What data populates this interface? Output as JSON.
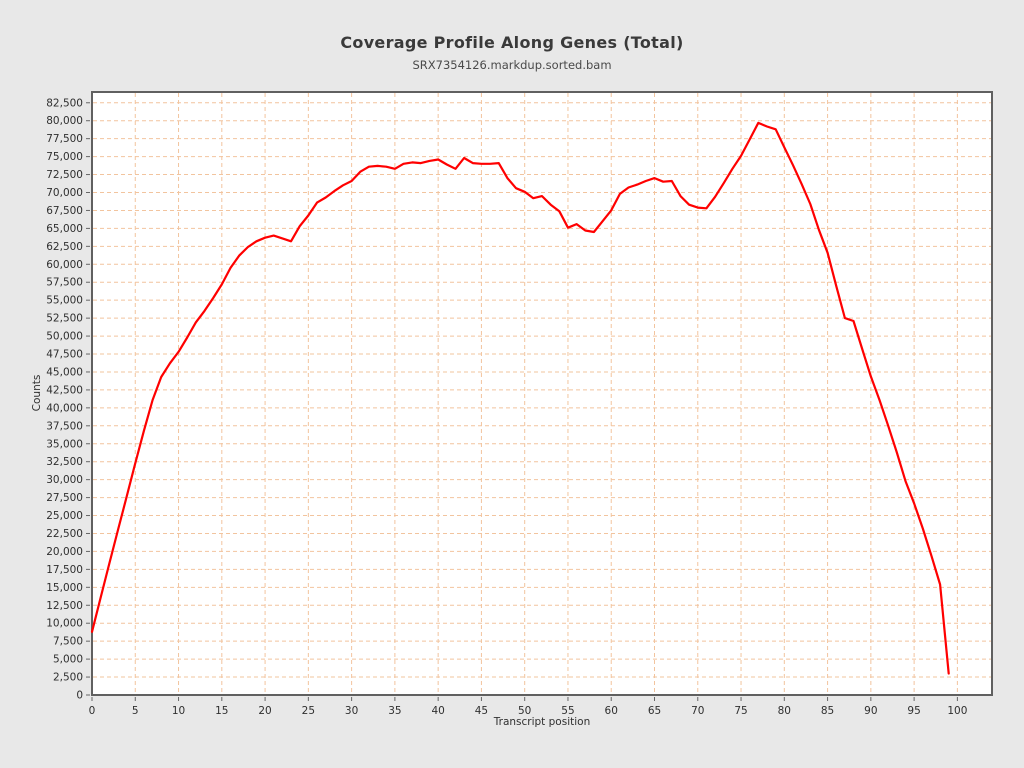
{
  "page": {
    "background": "#e8e8e8"
  },
  "chart_data": {
    "type": "line",
    "title": "Coverage Profile Along Genes (Total)",
    "subtitle": "SRX7354126.markdup.sorted.bam",
    "xlabel": "Transcript position",
    "ylabel": "Counts",
    "xlim": [
      0,
      104
    ],
    "ylim": [
      0,
      84000
    ],
    "xticks": [
      0,
      5,
      10,
      15,
      20,
      25,
      30,
      35,
      40,
      45,
      50,
      55,
      60,
      65,
      70,
      75,
      80,
      85,
      90,
      95,
      100
    ],
    "yticks": [
      0,
      2500,
      5000,
      7500,
      10000,
      12500,
      15000,
      17500,
      20000,
      22500,
      25000,
      27500,
      30000,
      32500,
      35000,
      37500,
      40000,
      42500,
      45000,
      47500,
      50000,
      52500,
      55000,
      57500,
      60000,
      62500,
      65000,
      67500,
      70000,
      72500,
      75000,
      77500,
      80000,
      82500
    ],
    "grid": {
      "show": true,
      "color": "#f2c49e",
      "dash": "4 3"
    },
    "panel": {
      "fill": "#ffffff",
      "border_color": "#606060"
    },
    "legend": {
      "show": false
    },
    "series": [
      {
        "name": "SRX7354126.markdup.sorted.bam",
        "color": "#ff0000",
        "x": [
          0,
          1,
          2,
          3,
          4,
          5,
          6,
          7,
          8,
          9,
          10,
          11,
          12,
          13,
          14,
          15,
          16,
          17,
          18,
          19,
          20,
          21,
          22,
          23,
          24,
          25,
          26,
          27,
          28,
          29,
          30,
          31,
          32,
          33,
          34,
          35,
          36,
          37,
          38,
          39,
          40,
          41,
          42,
          43,
          44,
          45,
          46,
          47,
          48,
          49,
          50,
          51,
          52,
          53,
          54,
          55,
          56,
          57,
          58,
          59,
          60,
          61,
          62,
          63,
          64,
          65,
          66,
          67,
          68,
          69,
          70,
          71,
          72,
          73,
          74,
          75,
          76,
          77,
          78,
          79,
          80,
          81,
          82,
          83,
          84,
          85,
          86,
          87,
          88,
          89,
          90,
          91,
          92,
          93,
          94,
          95,
          96,
          97,
          98,
          99
        ],
        "y": [
          8800,
          13600,
          18300,
          23000,
          27600,
          32300,
          36800,
          41100,
          44300,
          46200,
          47800,
          49800,
          51900,
          53500,
          55300,
          57200,
          59500,
          61200,
          62400,
          63200,
          63700,
          64000,
          63600,
          63200,
          65300,
          66800,
          68600,
          69300,
          70200,
          71000,
          71600,
          72900,
          73600,
          73700,
          73600,
          73300,
          74000,
          74200,
          74100,
          74400,
          74600,
          73900,
          73300,
          74800,
          74100,
          74000,
          74000,
          74100,
          72000,
          70600,
          70100,
          69200,
          69500,
          68300,
          67400,
          65100,
          65600,
          64700,
          64500,
          66000,
          67500,
          69800,
          70700,
          71100,
          71600,
          72000,
          71500,
          71600,
          69500,
          68300,
          67900,
          67800,
          69400,
          71300,
          73300,
          75100,
          77400,
          79700,
          79200,
          78800,
          76300,
          73800,
          71200,
          68400,
          64800,
          61600,
          57000,
          52500,
          52100,
          48200,
          44400,
          41100,
          37500,
          33800,
          29800,
          26700,
          23200,
          19400,
          15400,
          3000
        ]
      }
    ]
  }
}
